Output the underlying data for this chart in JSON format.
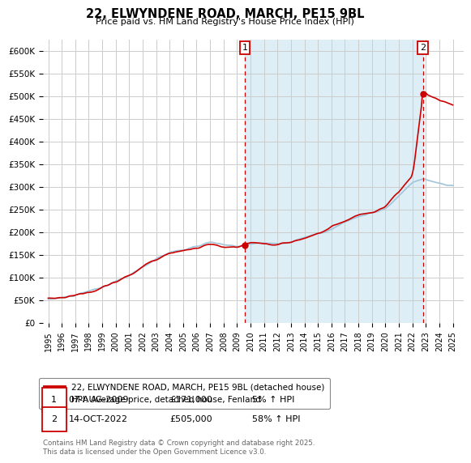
{
  "title": "22, ELWYNDENE ROAD, MARCH, PE15 9BL",
  "subtitle": "Price paid vs. HM Land Registry's House Price Index (HPI)",
  "ylabel_ticks": [
    "£0",
    "£50K",
    "£100K",
    "£150K",
    "£200K",
    "£250K",
    "£300K",
    "£350K",
    "£400K",
    "£450K",
    "£500K",
    "£550K",
    "£600K"
  ],
  "ylim": [
    0,
    625000
  ],
  "ytick_vals": [
    0,
    50000,
    100000,
    150000,
    200000,
    250000,
    300000,
    350000,
    400000,
    450000,
    500000,
    550000,
    600000
  ],
  "sale1_date_x": 2009.58,
  "sale1_price": 171000,
  "sale2_date_x": 2022.79,
  "sale2_price": 505000,
  "xlim_left": 1994.6,
  "xlim_right": 2025.8,
  "legend_label_red": "22, ELWYNDENE ROAD, MARCH, PE15 9BL (detached house)",
  "legend_label_blue": "HPI: Average price, detached house, Fenland",
  "table_row1": [
    "1",
    "07-AUG-2009",
    "£171,000",
    "5% ↑ HPI"
  ],
  "table_row2": [
    "2",
    "14-OCT-2022",
    "£505,000",
    "58% ↑ HPI"
  ],
  "footer": "Contains HM Land Registry data © Crown copyright and database right 2025.\nThis data is licensed under the Open Government Licence v3.0.",
  "color_red": "#cc0000",
  "color_blue": "#a0c4d8",
  "color_dashed": "#cc0000",
  "fill_color": "#ddeef7",
  "background": "#ffffff",
  "grid_color": "#cccccc"
}
